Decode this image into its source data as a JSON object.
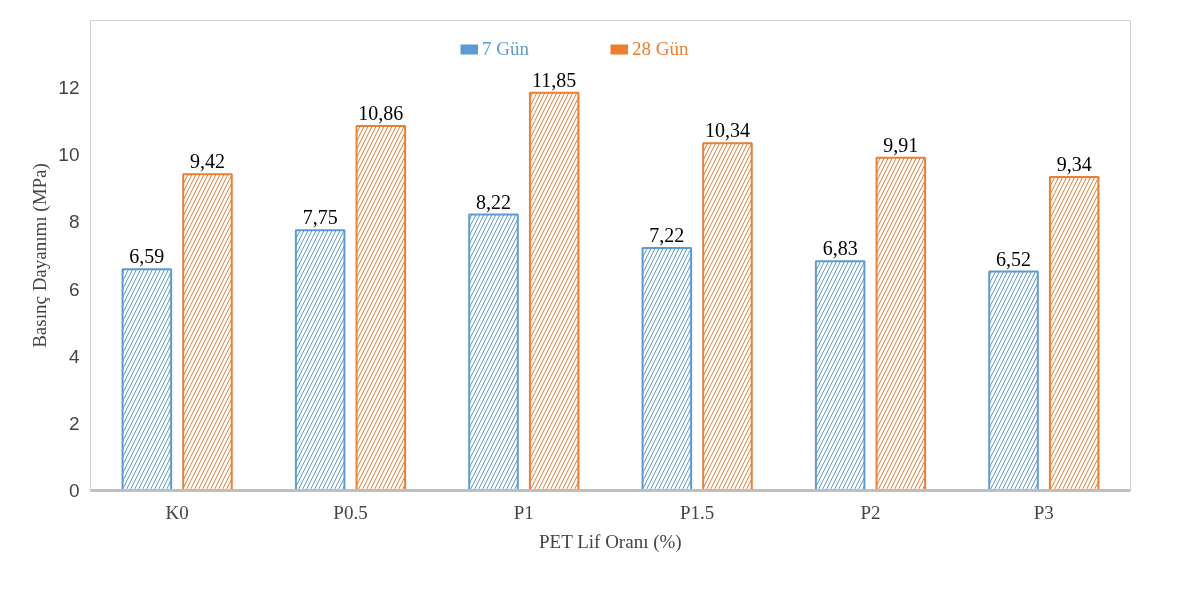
{
  "chart_data": {
    "type": "bar",
    "xlabel": "PET Lif Oranı (%)",
    "ylabel": "Basınç Dayanımı (MPa)",
    "categories": [
      "K0",
      "P0.5",
      "P1",
      "P1.5",
      "P2",
      "P3"
    ],
    "series": [
      {
        "name": "7 Gün",
        "color": "#5b9bd5",
        "values": [
          6.59,
          7.75,
          8.22,
          7.22,
          6.83,
          6.52
        ],
        "value_labels": [
          "6,59",
          "7,75",
          "8,22",
          "7,22",
          "6,83",
          "6,52"
        ]
      },
      {
        "name": "28 Gün",
        "color": "#ed7d31",
        "values": [
          9.42,
          10.86,
          11.85,
          10.34,
          9.91,
          9.34
        ],
        "value_labels": [
          "9,42",
          "10,86",
          "11,85",
          "10,34",
          "9,91",
          "9,34"
        ]
      }
    ],
    "ylim": [
      0,
      14
    ],
    "yticks": [
      0,
      2,
      4,
      6,
      8,
      10,
      12
    ],
    "grid": false,
    "legend": "top"
  }
}
